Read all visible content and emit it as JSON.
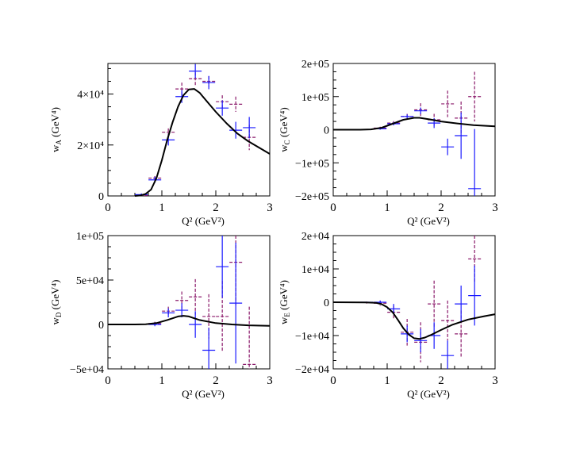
{
  "colors": {
    "blue": "#1a1aff",
    "purple": "#8b1a6b",
    "curve": "#000000"
  },
  "chart_data": [
    {
      "type": "line",
      "panel": "top-left",
      "title": "",
      "xlabel": "Q² (GeV²)",
      "ylabel": "w_A (GeV⁴)",
      "ylabel_main": "w",
      "ylabel_sub": "A",
      "ylabel_rest": "(GeV⁴)",
      "xlabel_main": "Q² (GeV²)",
      "xlim": [
        0,
        3
      ],
      "ylim": [
        0,
        52000
      ],
      "xticks": [
        0,
        1,
        2,
        3
      ],
      "xtick_labels": [
        "0",
        "1",
        "2",
        "3"
      ],
      "yticks": [
        0,
        20000,
        40000
      ],
      "ytick_labels": [
        "0",
        "2×10⁴",
        "4×10⁴"
      ],
      "curve": {
        "x": [
          0.5,
          0.6,
          0.7,
          0.8,
          0.9,
          1.0,
          1.1,
          1.2,
          1.3,
          1.4,
          1.5,
          1.6,
          1.7,
          1.8,
          1.9,
          2.0,
          2.2,
          2.4,
          2.6,
          2.8,
          3.0
        ],
        "y": [
          0,
          200,
          800,
          2500,
          7000,
          14000,
          22000,
          29000,
          35000,
          39500,
          41800,
          42000,
          40500,
          38000,
          35500,
          33000,
          28500,
          24500,
          21500,
          19000,
          16500
        ]
      },
      "series": [
        {
          "name": "blue",
          "style": "solid",
          "x": [
            0.62,
            0.87,
            1.12,
            1.37,
            1.62,
            1.87,
            2.12,
            2.37,
            2.62
          ],
          "y": [
            500,
            6300,
            22000,
            39000,
            49000,
            44500,
            34500,
            25800,
            26800
          ],
          "yerr": [
            500,
            1200,
            2200,
            2500,
            2800,
            2600,
            3000,
            3300,
            4200
          ]
        },
        {
          "name": "purple",
          "style": "dashed",
          "x": [
            0.62,
            0.87,
            1.12,
            1.37,
            1.62,
            1.87,
            2.12,
            2.37,
            2.62
          ],
          "y": [
            200,
            7000,
            25000,
            42000,
            46000,
            45000,
            37000,
            36000,
            23000
          ],
          "yerr": [
            300,
            800,
            1500,
            2500,
            2500,
            2000,
            2500,
            3000,
            5000
          ]
        }
      ]
    },
    {
      "type": "line",
      "panel": "top-right",
      "title": "",
      "xlabel": "Q² (GeV²)",
      "ylabel": "w_C (GeV⁴)",
      "ylabel_main": "w",
      "ylabel_sub": "C",
      "ylabel_rest": "(GeV⁴)",
      "xlabel_main": "Q² (GeV²)",
      "xlim": [
        0,
        3
      ],
      "ylim": [
        -200000,
        200000
      ],
      "xticks": [
        0,
        1,
        2,
        3
      ],
      "xtick_labels": [
        "0",
        "1",
        "2",
        "3"
      ],
      "yticks": [
        -200000,
        -100000,
        0,
        100000,
        200000
      ],
      "ytick_labels": [
        "−2e+05",
        "−1e+05",
        "0",
        "1e+05",
        "2e+05"
      ],
      "curve": {
        "x": [
          0.0,
          0.5,
          0.7,
          0.9,
          1.1,
          1.3,
          1.5,
          1.6,
          1.8,
          2.0,
          2.3,
          2.6,
          3.0
        ],
        "y": [
          0,
          0,
          1000,
          6000,
          18000,
          30000,
          36000,
          36000,
          31000,
          25000,
          19000,
          14000,
          10000
        ]
      },
      "series": [
        {
          "name": "blue",
          "style": "solid",
          "x": [
            0.87,
            1.12,
            1.37,
            1.62,
            1.87,
            2.12,
            2.37,
            2.62
          ],
          "y": [
            3000,
            18000,
            40000,
            57000,
            20000,
            -52000,
            -18000,
            -178000
          ],
          "yerr": [
            3000,
            5000,
            6000,
            10000,
            15000,
            25000,
            70000,
            180000
          ]
        },
        {
          "name": "purple",
          "style": "dashed",
          "x": [
            0.87,
            1.12,
            1.37,
            1.62,
            1.87,
            2.12,
            2.37,
            2.62
          ],
          "y": [
            5000,
            20000,
            40000,
            60000,
            30000,
            78000,
            35000,
            100000
          ],
          "yerr": [
            4000,
            6000,
            8000,
            20000,
            18000,
            40000,
            50000,
            75000
          ]
        }
      ]
    },
    {
      "type": "line",
      "panel": "bottom-left",
      "title": "",
      "xlabel": "Q² (GeV²)",
      "ylabel": "w_D (GeV⁴)",
      "ylabel_main": "w",
      "ylabel_sub": "D",
      "ylabel_rest": "(GeV⁴)",
      "xlabel_main": "Q² (GeV²)",
      "xlim": [
        0,
        3
      ],
      "ylim": [
        -50000,
        100000
      ],
      "xticks": [
        0,
        1,
        2,
        3
      ],
      "xtick_labels": [
        "0",
        "1",
        "2",
        "3"
      ],
      "yticks": [
        -50000,
        0,
        50000,
        100000
      ],
      "ytick_labels": [
        "−5e+04",
        "0",
        "5e+04",
        "1e+05"
      ],
      "curve": {
        "x": [
          0.0,
          0.5,
          0.7,
          0.9,
          1.1,
          1.3,
          1.4,
          1.5,
          1.7,
          2.0,
          2.3,
          2.6,
          3.0
        ],
        "y": [
          0,
          0,
          300,
          1500,
          5000,
          9000,
          9700,
          9000,
          5000,
          1500,
          0,
          -1000,
          -1500
        ]
      },
      "series": [
        {
          "name": "blue",
          "style": "solid",
          "x": [
            0.87,
            1.12,
            1.37,
            1.62,
            1.87,
            2.12,
            2.37
          ],
          "y": [
            0,
            13000,
            16000,
            0,
            -29000,
            65000,
            24000
          ],
          "yerr": [
            2000,
            5000,
            8000,
            15000,
            25000,
            35000,
            68000
          ]
        },
        {
          "name": "purple",
          "style": "dashed",
          "x": [
            0.87,
            1.12,
            1.37,
            1.62,
            1.87,
            2.12,
            2.37,
            2.62
          ],
          "y": [
            1000,
            15000,
            27000,
            31000,
            9000,
            9000,
            70000,
            -45000
          ],
          "yerr": [
            2000,
            5000,
            10000,
            20000,
            25000,
            40000,
            50000,
            65000
          ]
        }
      ]
    },
    {
      "type": "line",
      "panel": "bottom-right",
      "title": "",
      "xlabel": "Q² (GeV²)",
      "ylabel": "w_E (GeV⁴)",
      "ylabel_main": "w",
      "ylabel_sub": "E",
      "ylabel_rest": "(GeV⁴)",
      "xlabel_main": "Q² (GeV²)",
      "xlim": [
        0,
        3
      ],
      "ylim": [
        -20000,
        20000
      ],
      "xticks": [
        0,
        1,
        2,
        3
      ],
      "xtick_labels": [
        "0",
        "1",
        "2",
        "3"
      ],
      "yticks": [
        -20000,
        -10000,
        0,
        10000,
        20000
      ],
      "ytick_labels": [
        "−2e+04",
        "−1e+04",
        "0",
        "1e+04",
        "2e+04"
      ],
      "curve": {
        "x": [
          0.0,
          0.6,
          0.8,
          0.9,
          1.0,
          1.1,
          1.2,
          1.3,
          1.4,
          1.5,
          1.6,
          1.7,
          1.8,
          2.0,
          2.2,
          2.5,
          2.8,
          3.0
        ],
        "y": [
          0,
          -50,
          -200,
          -600,
          -1500,
          -3000,
          -5300,
          -7800,
          -9700,
          -10800,
          -11000,
          -10600,
          -9900,
          -8300,
          -6800,
          -5200,
          -4200,
          -3600
        ]
      },
      "series": [
        {
          "name": "blue",
          "style": "solid",
          "x": [
            0.62,
            0.87,
            1.12,
            1.37,
            1.62,
            1.87,
            2.12,
            2.37,
            2.62
          ],
          "y": [
            0,
            0,
            -2000,
            -9500,
            -11500,
            -10000,
            -16000,
            -500,
            2000
          ],
          "yerr": [
            100,
            500,
            1500,
            2500,
            3500,
            4000,
            4500,
            5500,
            9000
          ]
        },
        {
          "name": "purple",
          "style": "dashed",
          "x": [
            0.62,
            0.87,
            1.12,
            1.37,
            1.62,
            1.87,
            2.12,
            2.37,
            2.62
          ],
          "y": [
            -100,
            -300,
            -3000,
            -9000,
            -12000,
            -500,
            -5500,
            -9500,
            13000
          ],
          "yerr": [
            300,
            800,
            2000,
            4000,
            6000,
            7000,
            6000,
            7000,
            7000
          ]
        }
      ]
    }
  ]
}
